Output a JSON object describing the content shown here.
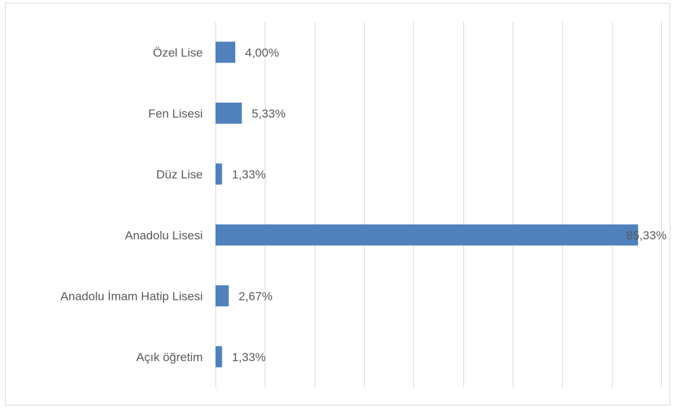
{
  "chart_data": {
    "type": "bar",
    "orientation": "horizontal",
    "categories": [
      "Özel Lise",
      "Fen Lisesi",
      "Düz Lise",
      "Anadolu Lisesi",
      "Anadolu İmam Hatip Lisesi",
      "Açık öğretim"
    ],
    "values": [
      4.0,
      5.33,
      1.33,
      85.33,
      2.67,
      1.33
    ],
    "data_labels": [
      "4,00%",
      "5,33%",
      "1,33%",
      "85,33%",
      "2,67%",
      "1,33%"
    ],
    "xlim": [
      0,
      90
    ],
    "grid": true,
    "legend": "none",
    "bar_color": "#4f81bd",
    "text_color": "#595959",
    "grid_color": "#d9d9d9"
  }
}
